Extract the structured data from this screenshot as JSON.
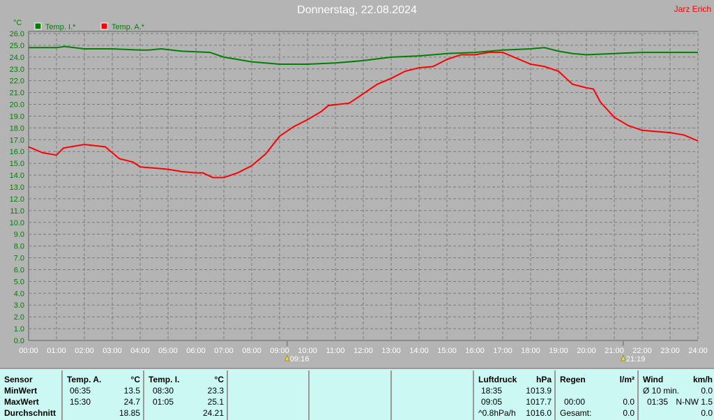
{
  "title": "Donnerstag, 22.08.2024",
  "author": "Jarz Erich",
  "chart_data": {
    "type": "line",
    "ylabel": "°C",
    "ylim": [
      0,
      26
    ],
    "yticks": [
      "0.0",
      "1.0",
      "2.0",
      "3.0",
      "4.0",
      "5.0",
      "6.0",
      "7.0",
      "8.0",
      "9.0",
      "10.0",
      "11.0",
      "12.0",
      "13.0",
      "14.0",
      "15.0",
      "16.0",
      "17.0",
      "18.0",
      "19.0",
      "20.0",
      "21.0",
      "22.0",
      "23.0",
      "24.0",
      "25.0",
      "26.0"
    ],
    "xticks": [
      "00:00",
      "01:00",
      "02:00",
      "03:00",
      "04:00",
      "05:00",
      "06:00",
      "07:00",
      "08:00",
      "09:00",
      "10:00",
      "11:00",
      "12:00",
      "13:00",
      "14:00",
      "15:00",
      "16:00",
      "17:00",
      "18:00",
      "19:00",
      "20:00",
      "21:00",
      "22:00",
      "23:00",
      "24:00"
    ],
    "xlim_hours": [
      0,
      24
    ],
    "grid": true,
    "legend_placement": "top-left",
    "markers": [
      {
        "label": "09:16",
        "hour": 9.27,
        "type": "sunrise"
      },
      {
        "label": "21:19",
        "hour": 21.32,
        "type": "sunset"
      }
    ],
    "series": [
      {
        "name": "Temp. I.*",
        "color": "#008000",
        "x": [
          0,
          1,
          1.3,
          2,
          3,
          4,
          4.3,
          4.75,
          5.5,
          6.5,
          7,
          8,
          9,
          10,
          11,
          12,
          13,
          14,
          15,
          16,
          17,
          18,
          18.5,
          19,
          19.5,
          20,
          21,
          22,
          24
        ],
        "y": [
          24.8,
          24.8,
          24.9,
          24.7,
          24.7,
          24.6,
          24.6,
          24.7,
          24.5,
          24.4,
          24.0,
          23.6,
          23.4,
          23.4,
          23.5,
          23.7,
          24.0,
          24.1,
          24.3,
          24.4,
          24.6,
          24.7,
          24.8,
          24.5,
          24.3,
          24.2,
          24.3,
          24.4,
          24.4
        ]
      },
      {
        "name": "Temp. A.*",
        "color": "#ff0000",
        "x": [
          0,
          0.5,
          1,
          1.25,
          2,
          2.75,
          3.25,
          3.75,
          4,
          4.5,
          5,
          5.5,
          6,
          6.25,
          6.6,
          7,
          7.5,
          8,
          8.5,
          9,
          9.5,
          10,
          10.5,
          10.75,
          11.5,
          12,
          12.5,
          13,
          13.5,
          14,
          14.5,
          15,
          15.5,
          16,
          16.5,
          17,
          17.5,
          18,
          18.5,
          19,
          19.5,
          20,
          20.25,
          20.5,
          21,
          21.5,
          22,
          22.5,
          23,
          23.5,
          24
        ],
        "y": [
          16.4,
          15.9,
          15.7,
          16.3,
          16.6,
          16.4,
          15.4,
          15.1,
          14.7,
          14.6,
          14.5,
          14.3,
          14.2,
          14.2,
          13.8,
          13.8,
          14.2,
          14.8,
          15.8,
          17.3,
          18.1,
          18.7,
          19.4,
          19.9,
          20.1,
          20.9,
          21.7,
          22.2,
          22.8,
          23.1,
          23.2,
          23.8,
          24.2,
          24.2,
          24.4,
          24.4,
          23.9,
          23.4,
          23.2,
          22.8,
          21.7,
          21.4,
          21.3,
          20.2,
          18.9,
          18.2,
          17.8,
          17.7,
          17.6,
          17.4,
          16.9
        ]
      }
    ]
  },
  "table": {
    "sensor": {
      "header": "Sensor",
      "rows": [
        "MinWert",
        "MaxWert",
        "Durchschnitt"
      ]
    },
    "temp_a": {
      "header": "Temp. A.",
      "unit": "°C",
      "min_time": "06:35",
      "min": "13.5",
      "max_time": "15:30",
      "max": "24.7",
      "avg": "18.85"
    },
    "temp_i": {
      "header": "Temp. I.",
      "unit": "°C",
      "min_time": "08:30",
      "min": "23.3",
      "max_time": "01:05",
      "max": "25.1",
      "avg": "24.21"
    },
    "pressure": {
      "header": "Luftdruck",
      "unit": "hPa",
      "min_time": "18:35",
      "min": "1013.9",
      "max_time": "09:05",
      "max": "1017.7",
      "trend": "^0.8hPa/h",
      "current": "1016.0"
    },
    "rain": {
      "header": "Regen",
      "unit": "l/m²",
      "time": "00:00",
      "value": "0.0",
      "total_label": "Gesamt:",
      "total": "0.0"
    },
    "wind": {
      "header": "Wind",
      "unit": "km/h",
      "avg_label": "Ø 10 min.",
      "avg": "0.0",
      "max_time": "01:35",
      "max": "N-NW 1.5",
      "current": "0.0"
    }
  }
}
